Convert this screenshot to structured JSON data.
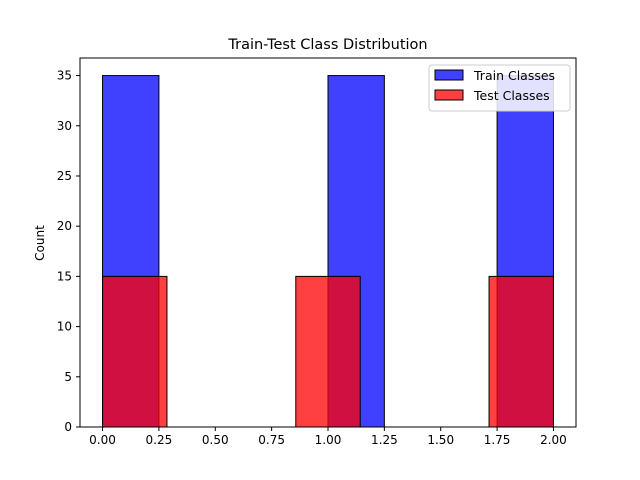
{
  "chart_data": {
    "type": "bar",
    "title": "Train-Test Class Distribution",
    "xlabel": "",
    "ylabel": "Count",
    "xlim": [
      -0.1,
      2.1
    ],
    "ylim": [
      0,
      36.75
    ],
    "xticks": [
      0.0,
      0.25,
      0.5,
      0.75,
      1.0,
      1.25,
      1.5,
      1.75,
      2.0
    ],
    "xtick_labels": [
      "0.00",
      "0.25",
      "0.50",
      "0.75",
      "1.00",
      "1.25",
      "1.50",
      "1.75",
      "2.00"
    ],
    "yticks": [
      0,
      5,
      10,
      15,
      20,
      25,
      30,
      35
    ],
    "ytick_labels": [
      "0",
      "5",
      "10",
      "15",
      "20",
      "25",
      "30",
      "35"
    ],
    "grid": false,
    "legend_position": "top-right",
    "series": [
      {
        "name": "Train Classes",
        "color": "#0000ff",
        "opacity": 0.75,
        "bins": [
          {
            "x0": 0.0,
            "x1": 0.25,
            "count": 35
          },
          {
            "x0": 1.0,
            "x1": 1.25,
            "count": 35
          },
          {
            "x0": 1.75,
            "x1": 2.0,
            "count": 35
          }
        ]
      },
      {
        "name": "Test Classes",
        "color": "#ff0000",
        "opacity": 0.75,
        "bins": [
          {
            "x0": 0.0,
            "x1": 0.2857,
            "count": 15
          },
          {
            "x0": 0.8571,
            "x1": 1.1429,
            "count": 15
          },
          {
            "x0": 1.7143,
            "x1": 2.0,
            "count": 15
          }
        ]
      }
    ]
  }
}
